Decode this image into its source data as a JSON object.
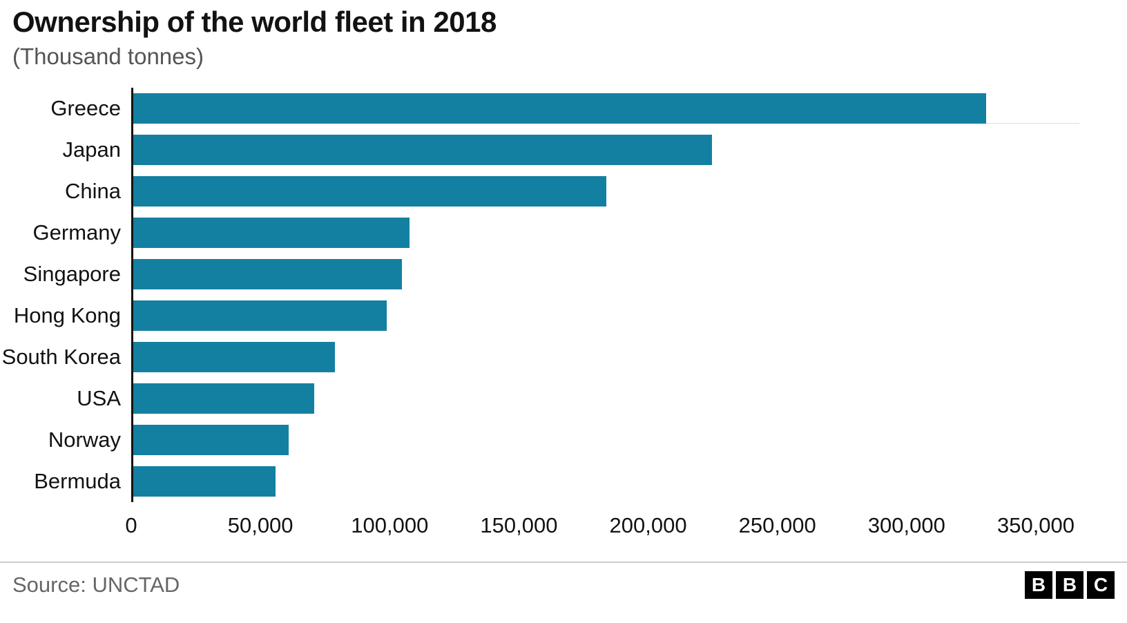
{
  "header": {
    "title": "Ownership of the world fleet in 2018",
    "subtitle": "(Thousand tonnes)"
  },
  "chart_data": {
    "type": "bar",
    "orientation": "horizontal",
    "title": "Ownership of the world fleet in 2018",
    "subtitle": "(Thousand tonnes)",
    "categories": [
      "Greece",
      "Japan",
      "China",
      "Germany",
      "Singapore",
      "Hong Kong",
      "South Korea",
      "USA",
      "Norway",
      "Bermuda"
    ],
    "values": [
      330000,
      224000,
      183000,
      107000,
      104000,
      98000,
      78000,
      70000,
      60000,
      55000
    ],
    "xlim": [
      0,
      350000
    ],
    "xticks": [
      0,
      50000,
      100000,
      150000,
      200000,
      250000,
      300000,
      350000
    ],
    "xtick_labels": [
      "0",
      "50,000",
      "100,000",
      "150,000",
      "200,000",
      "250,000",
      "300,000",
      "350,000"
    ],
    "bar_color": "#1380A1",
    "axis_color": "#121212",
    "grid": "off",
    "legend": "none"
  },
  "footer": {
    "source": "Source: UNCTAD",
    "logo_letters": [
      "B",
      "B",
      "C"
    ]
  }
}
